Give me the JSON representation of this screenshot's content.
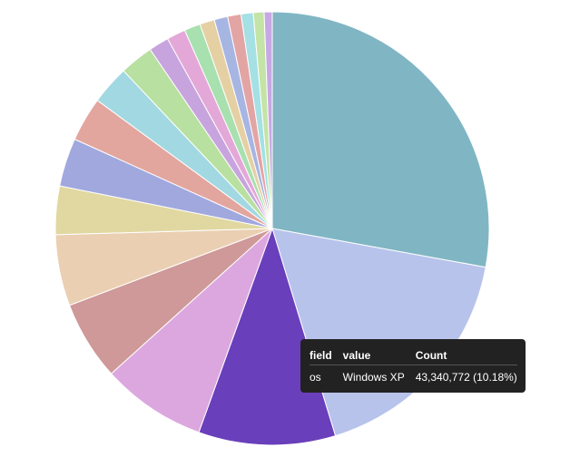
{
  "chart_data": {
    "type": "pie",
    "title": "",
    "slices": [
      {
        "value": 27.8,
        "color": "#80b6c4"
      },
      {
        "value": 17.4,
        "color": "#b8c3ec"
      },
      {
        "value": 10.18,
        "color": "#6a3fbb",
        "label": "Windows XP"
      },
      {
        "value": 7.8,
        "color": "#dca7df"
      },
      {
        "value": 5.9,
        "color": "#ce9998"
      },
      {
        "value": 5.3,
        "color": "#eacfb2"
      },
      {
        "value": 3.6,
        "color": "#e1d8a1"
      },
      {
        "value": 3.6,
        "color": "#a0a8de"
      },
      {
        "value": 3.3,
        "color": "#e2a69f"
      },
      {
        "value": 2.9,
        "color": "#a2d8e1"
      },
      {
        "value": 2.5,
        "color": "#b8e0a0"
      },
      {
        "value": 1.5,
        "color": "#c8a4de"
      },
      {
        "value": 1.4,
        "color": "#e3a8d8"
      },
      {
        "value": 1.2,
        "color": "#a8e0b0"
      },
      {
        "value": 1.1,
        "color": "#e5d0a4"
      },
      {
        "value": 1.0,
        "color": "#a7b5e2"
      },
      {
        "value": 1.0,
        "color": "#e3a4a4"
      },
      {
        "value": 0.9,
        "color": "#a4e0e4"
      },
      {
        "value": 0.8,
        "color": "#c3e4a6"
      },
      {
        "value": 0.6,
        "color": "#c8a8e4"
      }
    ]
  },
  "tooltip": {
    "headers": {
      "field": "field",
      "value": "value",
      "count": "Count"
    },
    "row": {
      "field": "os",
      "value": "Windows XP",
      "count": "43,340,772 (10.18%)"
    }
  }
}
